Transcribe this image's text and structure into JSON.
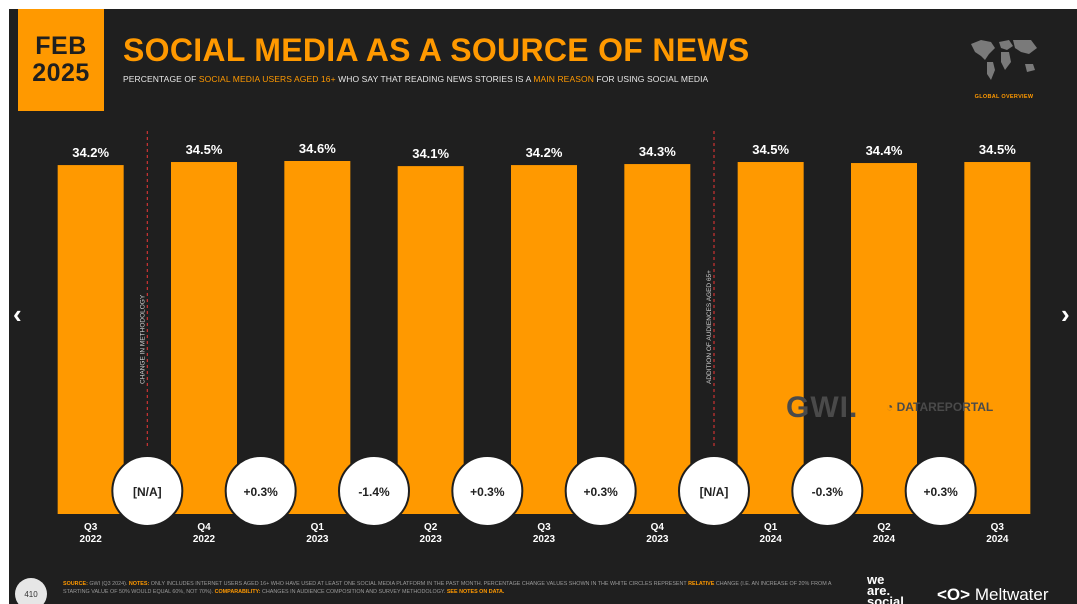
{
  "header": {
    "date_month": "FEB",
    "date_year": "2025",
    "title": "SOCIAL MEDIA AS A SOURCE OF NEWS",
    "subtitle_parts": [
      "PERCENTAGE OF ",
      "SOCIAL MEDIA USERS AGED 16+",
      " WHO SAY THAT READING NEWS STORIES IS A ",
      "MAIN REASON",
      " FOR USING SOCIAL MEDIA"
    ],
    "global_label": "GLOBAL OVERVIEW"
  },
  "nav": {
    "prev_icon": "chevron-left-icon",
    "next_icon": "chevron-right-icon",
    "prev": "‹",
    "next": "›"
  },
  "chart_data": {
    "type": "bar",
    "categories": [
      [
        "Q3",
        "2022"
      ],
      [
        "Q4",
        "2022"
      ],
      [
        "Q1",
        "2023"
      ],
      [
        "Q2",
        "2023"
      ],
      [
        "Q3",
        "2023"
      ],
      [
        "Q4",
        "2023"
      ],
      [
        "Q1",
        "2024"
      ],
      [
        "Q2",
        "2024"
      ],
      [
        "Q3",
        "2024"
      ]
    ],
    "values": [
      34.2,
      34.5,
      34.6,
      34.1,
      34.2,
      34.3,
      34.5,
      34.4,
      34.5
    ],
    "value_labels": [
      "34.2%",
      "34.5%",
      "34.6%",
      "34.1%",
      "34.2%",
      "34.3%",
      "34.5%",
      "34.4%",
      "34.5%"
    ],
    "changes": [
      "[N/A]",
      "+0.3%",
      "-1.4%",
      "+0.3%",
      "+0.3%",
      "[N/A]",
      "-0.3%",
      "+0.3%"
    ],
    "dividers": [
      {
        "after_index": 0,
        "label": "CHANGE IN METHODOLOGY"
      },
      {
        "after_index": 5,
        "label": "ADDITION OF AUDIENCES AGED 65+"
      }
    ],
    "bar_color": "#ff9900",
    "background": "#1f1f1f",
    "ylim": [
      0,
      34.6
    ],
    "grid": false,
    "legend": "none"
  },
  "watermark": {
    "gwi": "GWI.",
    "datareportal": "DATAREPORTAL"
  },
  "footer": {
    "page_number": "410",
    "source_label": "SOURCE:",
    "source_text": " GWI (Q3 2024). ",
    "notes_label": "NOTES:",
    "notes_text": " ONLY INCLUDES INTERNET USERS AGED 16+ WHO HAVE USED AT LEAST ONE SOCIAL MEDIA PLATFORM IN THE PAST MONTH. PERCENTAGE CHANGE VALUES SHOWN IN THE WHITE CIRCLES REPRESENT ",
    "relative_label": "RELATIVE",
    "relative_text": " CHANGE (I.E. AN INCREASE OF 20% FROM A STARTING VALUE OF 50% WOULD EQUAL 60%, NOT 70%). ",
    "comparability_label": "COMPARABILITY:",
    "comparability_text": " CHANGES IN AUDIENCE COMPOSITION AND SURVEY METHODOLOGY. ",
    "see_notes": "SEE NOTES ON DATA.",
    "brand1": [
      "we",
      "are.",
      "social"
    ],
    "brand2_symbol": "<O>",
    "brand2": "Meltwater"
  }
}
